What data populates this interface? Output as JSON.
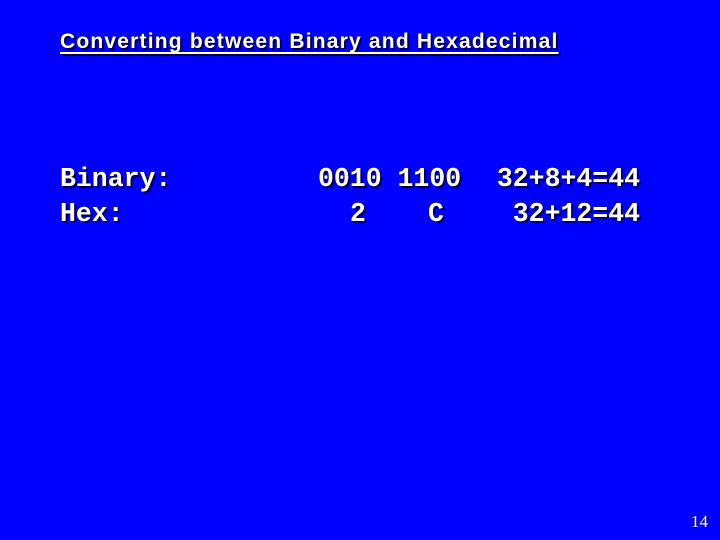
{
  "slide": {
    "title": "Converting between Binary and Hexadecimal",
    "page_number": "14",
    "colors": {
      "background": "#0000FF",
      "text": "#FFFFFF",
      "shadow": "rgba(0,0,0,0.8)"
    },
    "conversion": {
      "binary_label": "Binary:",
      "binary_value": "0010 1100",
      "binary_sum": "32+8+4=44",
      "hex_label": "Hex:",
      "hex_digit_high": "2",
      "hex_digit_low": "C",
      "hex_sum": "32+12=44"
    }
  }
}
